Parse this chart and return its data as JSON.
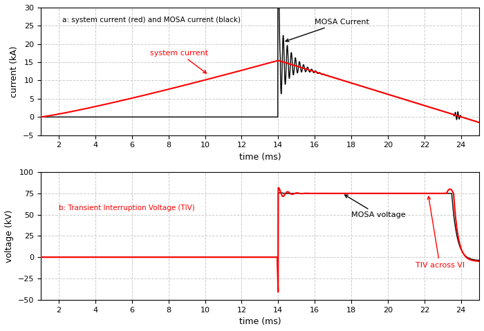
{
  "fig_width": 7.0,
  "fig_height": 4.79,
  "dpi": 100,
  "background_color": "#ffffff",
  "top_subplot": {
    "xlabel": "time (ms)",
    "ylabel": "current (kA)",
    "xlim": [
      1,
      25
    ],
    "ylim": [
      -5,
      30
    ],
    "yticks": [
      -5,
      0,
      5,
      10,
      15,
      20,
      25,
      30
    ],
    "xticks": [
      2,
      4,
      6,
      8,
      10,
      12,
      14,
      16,
      18,
      20,
      22,
      24
    ],
    "label_text": "a: system current (red) and MOSA current (black)",
    "annotation_mosa": "MOSA Current",
    "annotation_system": "system current",
    "grid_color": "#cccccc",
    "grid_linestyle": "--"
  },
  "bottom_subplot": {
    "xlabel": "time (ms)",
    "ylabel": "voltage (kV)",
    "xlim": [
      1,
      25
    ],
    "ylim": [
      -50,
      100
    ],
    "yticks": [
      -50,
      -25,
      0,
      25,
      50,
      75,
      100
    ],
    "xticks": [
      2,
      4,
      6,
      8,
      10,
      12,
      14,
      16,
      18,
      20,
      22,
      24
    ],
    "label_text": "b: Transient Interruption Voltage (TIV)",
    "annotation_mosa": "MOSA voltage",
    "annotation_tiv": "TIV across VI",
    "grid_color": "#cccccc",
    "grid_linestyle": "--"
  },
  "colors": {
    "red": "#ff0000",
    "black": "#000000"
  }
}
